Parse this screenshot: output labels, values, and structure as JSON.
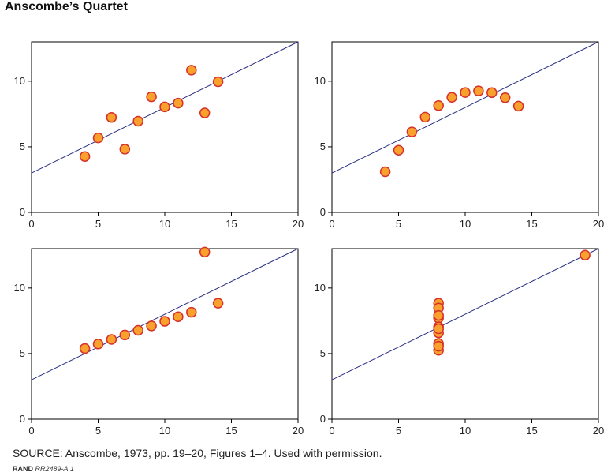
{
  "title": "Anscombe’s Quartet",
  "source": "SOURCE: Anscombe, 1973, pp. 19–20, Figures 1–4. Used with permission.",
  "code": {
    "org": "RAND",
    "id": "RR2489-A.1"
  },
  "colors": {
    "marker_fill": "#f9a12c",
    "marker_stroke": "#d6302b",
    "fit_line": "#2c2f86",
    "axis": "#000000"
  },
  "chart_data": [
    {
      "type": "scatter",
      "xlim": [
        0,
        20
      ],
      "ylim": [
        0,
        13
      ],
      "xticks": [
        0,
        5,
        10,
        15,
        20
      ],
      "yticks": [
        0,
        5,
        10
      ],
      "fit": {
        "intercept": 3.0,
        "slope": 0.5
      },
      "x": [
        10,
        8,
        13,
        9,
        11,
        14,
        6,
        4,
        12,
        7,
        5
      ],
      "y": [
        8.04,
        6.95,
        7.58,
        8.81,
        8.33,
        9.96,
        7.24,
        4.26,
        10.84,
        4.82,
        5.68
      ]
    },
    {
      "type": "scatter",
      "xlim": [
        0,
        20
      ],
      "ylim": [
        0,
        13
      ],
      "xticks": [
        0,
        5,
        10,
        15,
        20
      ],
      "yticks": [
        0,
        5,
        10
      ],
      "fit": {
        "intercept": 3.0,
        "slope": 0.5
      },
      "x": [
        10,
        8,
        13,
        9,
        11,
        14,
        6,
        4,
        12,
        7,
        5
      ],
      "y": [
        9.14,
        8.14,
        8.74,
        8.77,
        9.26,
        8.1,
        6.13,
        3.1,
        9.13,
        7.26,
        4.74
      ]
    },
    {
      "type": "scatter",
      "xlim": [
        0,
        20
      ],
      "ylim": [
        0,
        13
      ],
      "xticks": [
        0,
        5,
        10,
        15,
        20
      ],
      "yticks": [
        0,
        5,
        10
      ],
      "fit": {
        "intercept": 3.0,
        "slope": 0.5
      },
      "x": [
        10,
        8,
        13,
        9,
        11,
        14,
        6,
        4,
        12,
        7,
        5
      ],
      "y": [
        7.46,
        6.77,
        12.74,
        7.11,
        7.81,
        8.84,
        6.08,
        5.39,
        8.15,
        6.42,
        5.73
      ]
    },
    {
      "type": "scatter",
      "xlim": [
        0,
        20
      ],
      "ylim": [
        0,
        13
      ],
      "xticks": [
        0,
        5,
        10,
        15,
        20
      ],
      "yticks": [
        0,
        5,
        10
      ],
      "fit": {
        "intercept": 3.0,
        "slope": 0.5
      },
      "x": [
        8,
        8,
        8,
        8,
        8,
        8,
        8,
        19,
        8,
        8,
        8
      ],
      "y": [
        6.58,
        5.76,
        7.71,
        8.84,
        8.47,
        7.04,
        5.25,
        12.5,
        5.56,
        7.91,
        6.89
      ]
    }
  ]
}
